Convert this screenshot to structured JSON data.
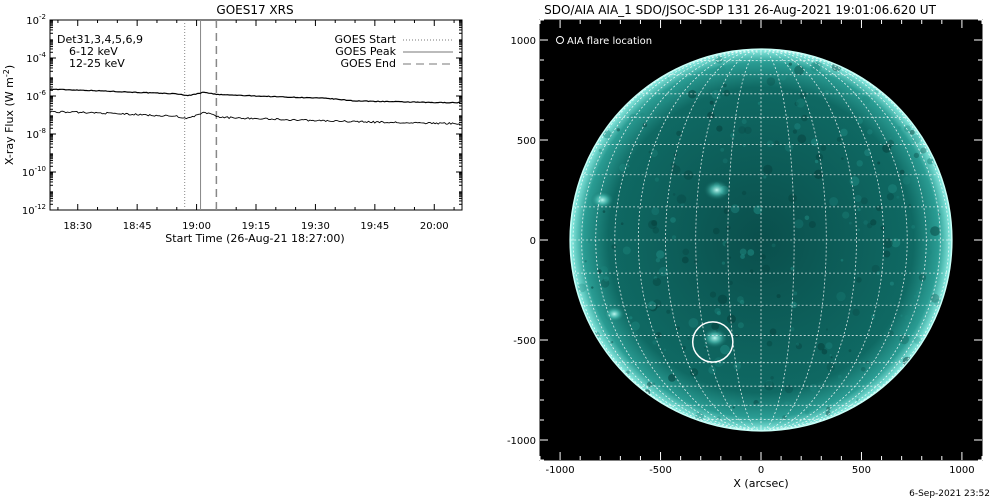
{
  "goes_panel": {
    "title": "GOES17 XRS",
    "ylabel": "X-ray Flux (W m",
    "ylabel_sup": "-2",
    "ylabel_end": ")",
    "xlabel": "Start Time (26-Aug-21 18:27:00)",
    "detectors": "Det31,3,4,5,6,9",
    "band_low": "6-12 keV",
    "band_high": "12-25 keV",
    "band_low_color": "#e000e0",
    "band_high_color": "#00dd00",
    "legend": {
      "start": "GOES Start",
      "peak": "GOES Peak",
      "end": "GOES End"
    }
  },
  "aia_panel": {
    "title": "SDO/AIA AIA_1 SDO/JSOC-SDP 131 26-Aug-2021 19:01:06.620 UT",
    "legend_label": "AIA flare location",
    "xlabel": "X (arcsec)",
    "disk_color": "#0e6f68",
    "limb_color": "#9ff6ee",
    "background": "#000000"
  },
  "timestamp": "6-Sep-2021 23:52",
  "chart_data": [
    {
      "type": "line",
      "title": "GOES17 XRS",
      "xlabel": "Start Time (26-Aug-21 18:27:00)",
      "ylabel": "X-ray Flux (W m-2)",
      "x_unit": "minutes since 18:27:00",
      "xlim": [
        "18:23",
        "20:07"
      ],
      "x_ticks": [
        "18:30",
        "18:45",
        "19:00",
        "19:15",
        "19:30",
        "19:45",
        "20:00"
      ],
      "ylim": [
        1e-12,
        0.01
      ],
      "y_scale": "log",
      "y_ticks": [
        {
          "value": 0.01,
          "base": "10",
          "exp": "-2"
        },
        {
          "value": 0.0001,
          "base": "10",
          "exp": "-4"
        },
        {
          "value": 1e-06,
          "base": "10",
          "exp": "-6"
        },
        {
          "value": 1e-08,
          "base": "10",
          "exp": "-8"
        },
        {
          "value": 1e-10,
          "base": "10",
          "exp": "-10"
        },
        {
          "value": 1e-12,
          "base": "10",
          "exp": "-12"
        }
      ],
      "grid": false,
      "legend_position": "top-right",
      "series": [
        {
          "name": "6-12 keV",
          "color": "#000000",
          "points": [
            [
              "18:23",
              2.3e-06
            ],
            [
              "18:35",
              1.9e-06
            ],
            [
              "18:45",
              1.55e-06
            ],
            [
              "18:55",
              1.3e-06
            ],
            [
              "18:58",
              1.05e-06
            ],
            [
              "19:02",
              1.6e-06
            ],
            [
              "19:05",
              1.2e-06
            ],
            [
              "19:15",
              1e-06
            ],
            [
              "19:25",
              8.5e-07
            ],
            [
              "19:33",
              7.5e-07
            ],
            [
              "19:40",
              5.5e-07
            ],
            [
              "19:50",
              5e-07
            ],
            [
              "20:00",
              4.5e-07
            ],
            [
              "20:07",
              4.5e-07
            ]
          ]
        },
        {
          "name": "12-25 keV",
          "color": "#000000",
          "points": [
            [
              "18:23",
              1.5e-07
            ],
            [
              "18:35",
              1.3e-07
            ],
            [
              "18:45",
              1.05e-07
            ],
            [
              "18:55",
              8.5e-08
            ],
            [
              "18:58",
              6.5e-08
            ],
            [
              "19:02",
              1.4e-07
            ],
            [
              "19:06",
              7.5e-08
            ],
            [
              "19:15",
              6.5e-08
            ],
            [
              "19:25",
              5.5e-08
            ],
            [
              "19:35",
              4.8e-08
            ],
            [
              "19:45",
              4.2e-08
            ],
            [
              "19:55",
              3.8e-08
            ],
            [
              "20:07",
              3.5e-08
            ]
          ]
        }
      ],
      "markers": [
        {
          "name": "GOES Start",
          "time": "18:57",
          "style": "dotted"
        },
        {
          "name": "GOES Peak",
          "time": "19:01",
          "style": "solid"
        },
        {
          "name": "GOES End",
          "time": "19:05",
          "style": "dashed"
        }
      ]
    },
    {
      "type": "scatter",
      "title": "SDO/AIA AIA_1 SDO/JSOC-SDP 131 26-Aug-2021 19:01:06.620 UT",
      "xlabel": "X (arcsec)",
      "ylabel": "",
      "xlim": [
        -1100,
        1100
      ],
      "ylim": [
        -1100,
        1100
      ],
      "x_ticks": [
        -1000,
        -500,
        0,
        500,
        1000
      ],
      "y_ticks": [
        -1000,
        -500,
        0,
        500,
        1000
      ],
      "solar_radius_arcsec": 950,
      "grid_spacing_deg": 10,
      "bright_regions": [
        {
          "x": -220,
          "y": 250,
          "r": 50
        },
        {
          "x": -790,
          "y": 200,
          "r": 45
        },
        {
          "x": -730,
          "y": -370,
          "r": 40
        },
        {
          "x": -230,
          "y": -490,
          "r": 50
        }
      ],
      "series": [
        {
          "name": "AIA flare location",
          "points": [
            [
              -240,
              -510
            ]
          ],
          "marker": "circle",
          "marker_radius_arcsec": 100
        }
      ]
    }
  ]
}
